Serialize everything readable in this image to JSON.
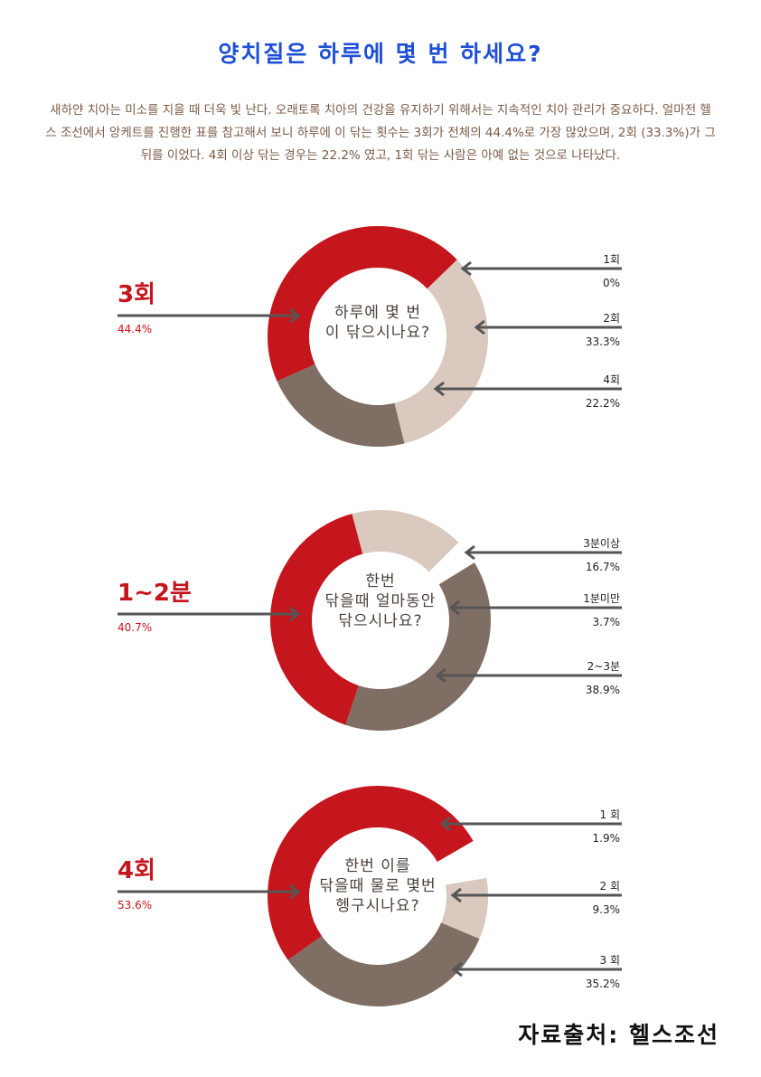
{
  "title": "양치질은 하루에 몇 번 하세요?",
  "intro": "새하얀 치아는 미소를 지을 때 더욱 빛 난다. 오래토록 치아의 건강을 유지하기 위해서는 지속적인 치아 관리가 중요하다. 얼마전 헬스 조선에서 앙케트를 진행한 표를 참고해서 보니 하루에 이 닦는 횟수는 3회가 전체의 44.4%로 가장 많았으며, 2회 (33.3%)가 그 뒤를 이었다. 4회 이상 닦는 경우는 22.2% 였고, 1회 닦는 사람은 아예 없는 것으로 나타났다.",
  "source": "자료출처:  헬스조선",
  "colors": {
    "red": "#c4161c",
    "brown": "#7e6e63",
    "beige": "#d9c9bf",
    "arrow": "#555555",
    "label_red": "#c4161c"
  },
  "chart_data": [
    {
      "type": "pie",
      "style": "donut",
      "center_text": [
        "하루에 몇 번",
        "이 닦으시나요?"
      ],
      "highlight": {
        "label": "3회",
        "value": "44.4%"
      },
      "slices": [
        {
          "label": "3회",
          "value": 44.4,
          "value_text": "44.4%",
          "color": "red"
        },
        {
          "label": "1회",
          "value": 0,
          "value_text": "0%",
          "color": "none"
        },
        {
          "label": "2회",
          "value": 33.3,
          "value_text": "33.3%",
          "color": "beige"
        },
        {
          "label": "4회",
          "value": 22.2,
          "value_text": "22.2%",
          "color": "brown"
        }
      ]
    },
    {
      "type": "pie",
      "style": "donut",
      "center_text": [
        "한번",
        "닦을때 얼마동안",
        "닦으시나요?"
      ],
      "highlight": {
        "label": "1~2분",
        "value": "40.7%"
      },
      "slices": [
        {
          "label": "1~2분",
          "value": 40.7,
          "value_text": "40.7%",
          "color": "red"
        },
        {
          "label": "3분이상",
          "value": 16.7,
          "value_text": "16.7%",
          "color": "beige"
        },
        {
          "label": "1분미만",
          "value": 3.7,
          "value_text": "3.7%",
          "color": "none"
        },
        {
          "label": "2~3분",
          "value": 38.9,
          "value_text": "38.9%",
          "color": "brown"
        }
      ]
    },
    {
      "type": "pie",
      "style": "donut",
      "center_text": [
        "한번 이를",
        "닦을때 물로 몇번",
        "헹구시나요?"
      ],
      "highlight": {
        "label": "4회",
        "value": "53.6%"
      },
      "slices": [
        {
          "label": "4회",
          "value": 53.6,
          "value_text": "53.6%",
          "color": "red"
        },
        {
          "label": "1 회",
          "value": 1.9,
          "value_text": "1.9%",
          "color": "none"
        },
        {
          "label": "2 회",
          "value": 9.3,
          "value_text": "9.3%",
          "color": "beige"
        },
        {
          "label": "3 회",
          "value": 35.2,
          "value_text": "35.2%",
          "color": "brown"
        }
      ]
    }
  ]
}
